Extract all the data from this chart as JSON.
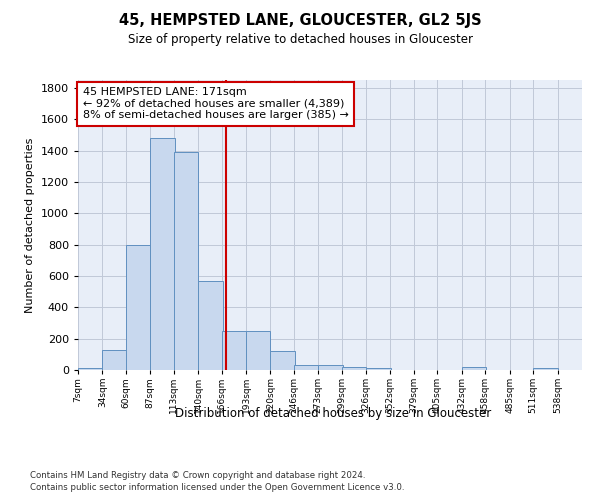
{
  "title": "45, HEMPSTED LANE, GLOUCESTER, GL2 5JS",
  "subtitle": "Size of property relative to detached houses in Gloucester",
  "xlabel": "Distribution of detached houses by size in Gloucester",
  "ylabel": "Number of detached properties",
  "bar_color": "#c8d8ee",
  "bar_edge_color": "#6090c0",
  "grid_color": "#c0c8d8",
  "bg_color": "#e8eef8",
  "vline_x": 171,
  "vline_color": "#cc0000",
  "annotation_line1": "45 HEMPSTED LANE: 171sqm",
  "annotation_line2": "← 92% of detached houses are smaller (4,389)",
  "annotation_line3": "8% of semi-detached houses are larger (385) →",
  "annotation_box_color": "#cc0000",
  "footnote1": "Contains HM Land Registry data © Crown copyright and database right 2024.",
  "footnote2": "Contains public sector information licensed under the Open Government Licence v3.0.",
  "bins": [
    7,
    34,
    60,
    87,
    113,
    140,
    166,
    193,
    220,
    246,
    273,
    299,
    326,
    352,
    379,
    405,
    432,
    458,
    485,
    511,
    538
  ],
  "bar_heights": [
    10,
    130,
    800,
    1480,
    1390,
    570,
    250,
    250,
    120,
    35,
    30,
    20,
    10,
    0,
    0,
    0,
    20,
    0,
    0,
    10,
    0
  ],
  "ylim": [
    0,
    1850
  ],
  "yticks": [
    0,
    200,
    400,
    600,
    800,
    1000,
    1200,
    1400,
    1600,
    1800
  ]
}
